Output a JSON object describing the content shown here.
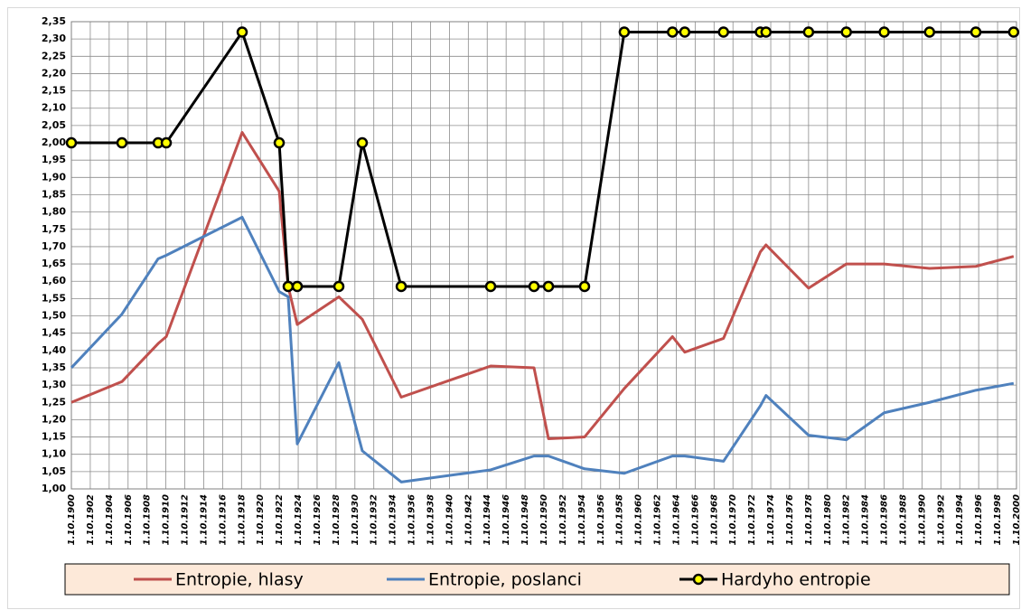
{
  "chart_data": {
    "type": "line",
    "x": [
      1900,
      1905.35,
      1909.18,
      1910.04,
      1918.07,
      1921.99,
      1922.94,
      1923.9,
      1928.3,
      1930.78,
      1934.9,
      1944.36,
      1948.95,
      1950.48,
      1954.3,
      1958.5,
      1963.6,
      1964.9,
      1969.0,
      1972.9,
      1973.5,
      1978.0,
      1982.0,
      1986.0,
      1990.8,
      1995.7,
      1999.7
    ],
    "series": [
      {
        "name": "Entropie, hlasy",
        "color": "#c0504d",
        "marker": false,
        "values": [
          1.25,
          1.31,
          1.42,
          1.44,
          2.03,
          1.86,
          1.585,
          1.475,
          1.555,
          1.49,
          1.265,
          1.355,
          1.35,
          1.145,
          1.15,
          1.29,
          1.44,
          1.395,
          1.435,
          1.685,
          1.705,
          1.58,
          1.65,
          1.65,
          1.637,
          1.643,
          1.672
        ]
      },
      {
        "name": "Entropie, poslanci",
        "color": "#4f81bd",
        "marker": false,
        "values": [
          1.35,
          1.505,
          1.665,
          1.675,
          1.785,
          1.57,
          1.555,
          1.13,
          1.365,
          1.11,
          1.02,
          1.055,
          1.095,
          1.095,
          1.058,
          1.045,
          1.095,
          1.095,
          1.08,
          1.24,
          1.27,
          1.155,
          1.142,
          1.22,
          1.25,
          1.285,
          1.305
        ]
      },
      {
        "name": "Hardyho entropie",
        "color": "#000000",
        "marker": true,
        "marker_color": "#ffff00",
        "values": [
          2.0,
          2.0,
          2.0,
          2.0,
          2.32,
          2.0,
          1.585,
          1.585,
          1.585,
          2.0,
          1.585,
          1.585,
          1.585,
          1.585,
          1.585,
          2.32,
          2.32,
          2.32,
          2.32,
          2.32,
          2.32,
          2.32,
          2.32,
          2.32,
          2.32,
          2.32,
          2.32
        ]
      }
    ],
    "xlim": [
      1900,
      2000
    ],
    "xticks": [
      {
        "value": 1900,
        "label": "1.10.1900"
      },
      {
        "value": 1902,
        "label": "1.10.1902"
      },
      {
        "value": 1904,
        "label": "1.10.1904"
      },
      {
        "value": 1906,
        "label": "1.10.1906"
      },
      {
        "value": 1908,
        "label": "1.10.1908"
      },
      {
        "value": 1910,
        "label": "1.10.1910"
      },
      {
        "value": 1912,
        "label": "1.10.1912"
      },
      {
        "value": 1914,
        "label": "1.10.1914"
      },
      {
        "value": 1916,
        "label": "1.10.1916"
      },
      {
        "value": 1918,
        "label": "1.10.1918"
      },
      {
        "value": 1920,
        "label": "1.10.1920"
      },
      {
        "value": 1922,
        "label": "1.10.1922"
      },
      {
        "value": 1924,
        "label": "1.10.1924"
      },
      {
        "value": 1926,
        "label": "1.10.1926"
      },
      {
        "value": 1928,
        "label": "1.10.1928"
      },
      {
        "value": 1930,
        "label": "1.10.1930"
      },
      {
        "value": 1932,
        "label": "1.10.1932"
      },
      {
        "value": 1934,
        "label": "1.10.1934"
      },
      {
        "value": 1936,
        "label": "1.10.1936"
      },
      {
        "value": 1938,
        "label": "1.10.1938"
      },
      {
        "value": 1940,
        "label": "1.10.1940"
      },
      {
        "value": 1942,
        "label": "1.10.1942"
      },
      {
        "value": 1944,
        "label": "1.10.1944"
      },
      {
        "value": 1946,
        "label": "1.10.1946"
      },
      {
        "value": 1948,
        "label": "1.10.1948"
      },
      {
        "value": 1950,
        "label": "1.10.1950"
      },
      {
        "value": 1952,
        "label": "1.10.1952"
      },
      {
        "value": 1954,
        "label": "1.10.1954"
      },
      {
        "value": 1956,
        "label": "1.10.1956"
      },
      {
        "value": 1958,
        "label": "1.10.1958"
      },
      {
        "value": 1960,
        "label": "1.10.1960"
      },
      {
        "value": 1962,
        "label": "1.10.1962"
      },
      {
        "value": 1964,
        "label": "1.10.1964"
      },
      {
        "value": 1966,
        "label": "1.10.1966"
      },
      {
        "value": 1968,
        "label": "1.10.1968"
      },
      {
        "value": 1970,
        "label": "1.10.1970"
      },
      {
        "value": 1972,
        "label": "1.10.1972"
      },
      {
        "value": 1974,
        "label": "1.10.1974"
      },
      {
        "value": 1976,
        "label": "1.10.1976"
      },
      {
        "value": 1978,
        "label": "1.10.1978"
      },
      {
        "value": 1980,
        "label": "1.10.1980"
      },
      {
        "value": 1982,
        "label": "1.10.1982"
      },
      {
        "value": 1984,
        "label": "1.10.1984"
      },
      {
        "value": 1986,
        "label": "1.10.1986"
      },
      {
        "value": 1988,
        "label": "1.10.1988"
      },
      {
        "value": 1990,
        "label": "1.10.1990"
      },
      {
        "value": 1992,
        "label": "1.10.1992"
      },
      {
        "value": 1994,
        "label": "1.10.1994"
      },
      {
        "value": 1996,
        "label": "1.10.1996"
      },
      {
        "value": 1998,
        "label": "1.10.1998"
      },
      {
        "value": 2000,
        "label": "1.10.2000"
      }
    ],
    "ylim": [
      1.0,
      2.35
    ],
    "yticks": [
      {
        "value": 1.0,
        "label": "1,00"
      },
      {
        "value": 1.05,
        "label": "1,05"
      },
      {
        "value": 1.1,
        "label": "1,10"
      },
      {
        "value": 1.15,
        "label": "1,15"
      },
      {
        "value": 1.2,
        "label": "1,20"
      },
      {
        "value": 1.25,
        "label": "1,25"
      },
      {
        "value": 1.3,
        "label": "1,30"
      },
      {
        "value": 1.35,
        "label": "1,35"
      },
      {
        "value": 1.4,
        "label": "1,40"
      },
      {
        "value": 1.45,
        "label": "1,45"
      },
      {
        "value": 1.5,
        "label": "1,50"
      },
      {
        "value": 1.55,
        "label": "1,55"
      },
      {
        "value": 1.6,
        "label": "1,60"
      },
      {
        "value": 1.65,
        "label": "1,65"
      },
      {
        "value": 1.7,
        "label": "1,70"
      },
      {
        "value": 1.75,
        "label": "1,75"
      },
      {
        "value": 1.8,
        "label": "1,80"
      },
      {
        "value": 1.85,
        "label": "1,85"
      },
      {
        "value": 1.9,
        "label": "1,90"
      },
      {
        "value": 1.95,
        "label": "1,95"
      },
      {
        "value": 2.0,
        "label": "2,00"
      },
      {
        "value": 2.05,
        "label": "2,05"
      },
      {
        "value": 2.1,
        "label": "2,10"
      },
      {
        "value": 2.15,
        "label": "2,15"
      },
      {
        "value": 2.2,
        "label": "2,20"
      },
      {
        "value": 2.25,
        "label": "2,25"
      },
      {
        "value": 2.3,
        "label": "2,30"
      },
      {
        "value": 2.35,
        "label": "2,35"
      }
    ],
    "grid": true,
    "legend": "bottom"
  }
}
